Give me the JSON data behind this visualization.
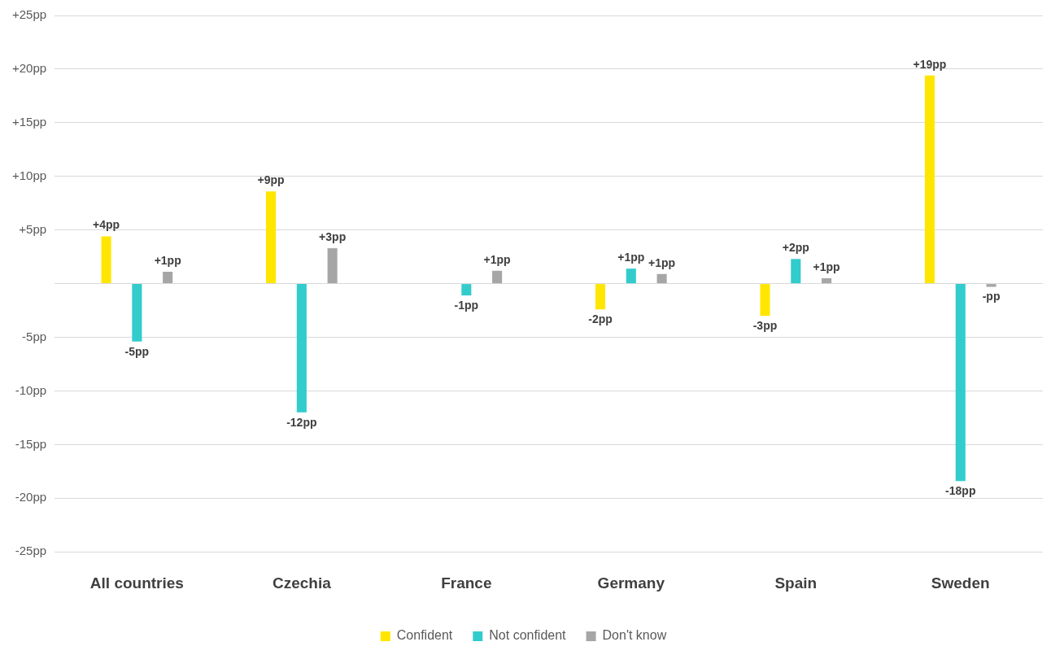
{
  "chart_data": {
    "type": "bar",
    "categories": [
      "All countries",
      "Czechia",
      "France",
      "Germany",
      "Spain",
      "Sweden"
    ],
    "series": [
      {
        "name": "Confident",
        "color": "#ffe600",
        "values": [
          4.4,
          8.6,
          0,
          -2.4,
          -3.0,
          19.4
        ],
        "value_labels": [
          "+4pp",
          "+9pp",
          null,
          "-2pp",
          "-3pp",
          "+19pp"
        ]
      },
      {
        "name": "Not confident",
        "color": "#33cccc",
        "values": [
          -5.4,
          -12.0,
          -1.1,
          1.4,
          2.3,
          -18.4
        ],
        "value_labels": [
          "-5pp",
          "-12pp",
          "-1pp",
          "+1pp",
          "+2pp",
          "-18pp"
        ]
      },
      {
        "name": "Don't know",
        "color": "#a6a6a6",
        "values": [
          1.1,
          3.3,
          1.2,
          0.9,
          0.5,
          -0.3
        ],
        "value_labels": [
          "+1pp",
          "+3pp",
          "+1pp",
          "+1pp",
          "+1pp",
          "-pp"
        ]
      }
    ],
    "ylim": [
      -25,
      25
    ],
    "yticks": [
      {
        "value": -25,
        "label": "-25pp"
      },
      {
        "value": -20,
        "label": "-20pp"
      },
      {
        "value": -15,
        "label": "-15pp"
      },
      {
        "value": -10,
        "label": "-10pp"
      },
      {
        "value": -5,
        "label": "-5pp"
      },
      {
        "value": 0,
        "label": null
      },
      {
        "value": 5,
        "label": "+5pp"
      },
      {
        "value": 10,
        "label": "+10pp"
      },
      {
        "value": 15,
        "label": "+15pp"
      },
      {
        "value": 20,
        "label": "+20pp"
      },
      {
        "value": 25,
        "label": "+25pp"
      }
    ],
    "grid": "y",
    "legend": "bottom"
  }
}
